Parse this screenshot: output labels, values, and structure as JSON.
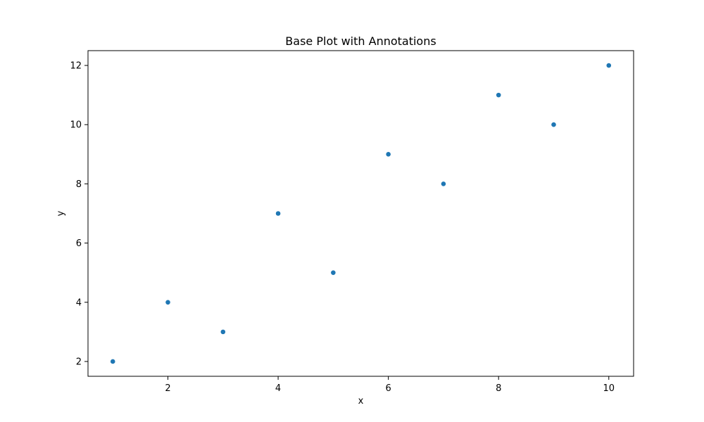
{
  "chart_data": {
    "type": "scatter",
    "title": "Base Plot with Annotations",
    "xlabel": "x",
    "ylabel": "y",
    "x": [
      1,
      2,
      3,
      4,
      5,
      6,
      7,
      8,
      9,
      10
    ],
    "y": [
      2,
      4,
      3,
      7,
      5,
      9,
      8,
      11,
      10,
      12
    ],
    "xlim": [
      0.55,
      10.45
    ],
    "ylim": [
      1.5,
      12.5
    ],
    "xticks": [
      2,
      4,
      6,
      8,
      10
    ],
    "yticks": [
      2,
      4,
      6,
      8,
      10,
      12
    ],
    "grid": false,
    "marker_color": "#1f77b4"
  }
}
